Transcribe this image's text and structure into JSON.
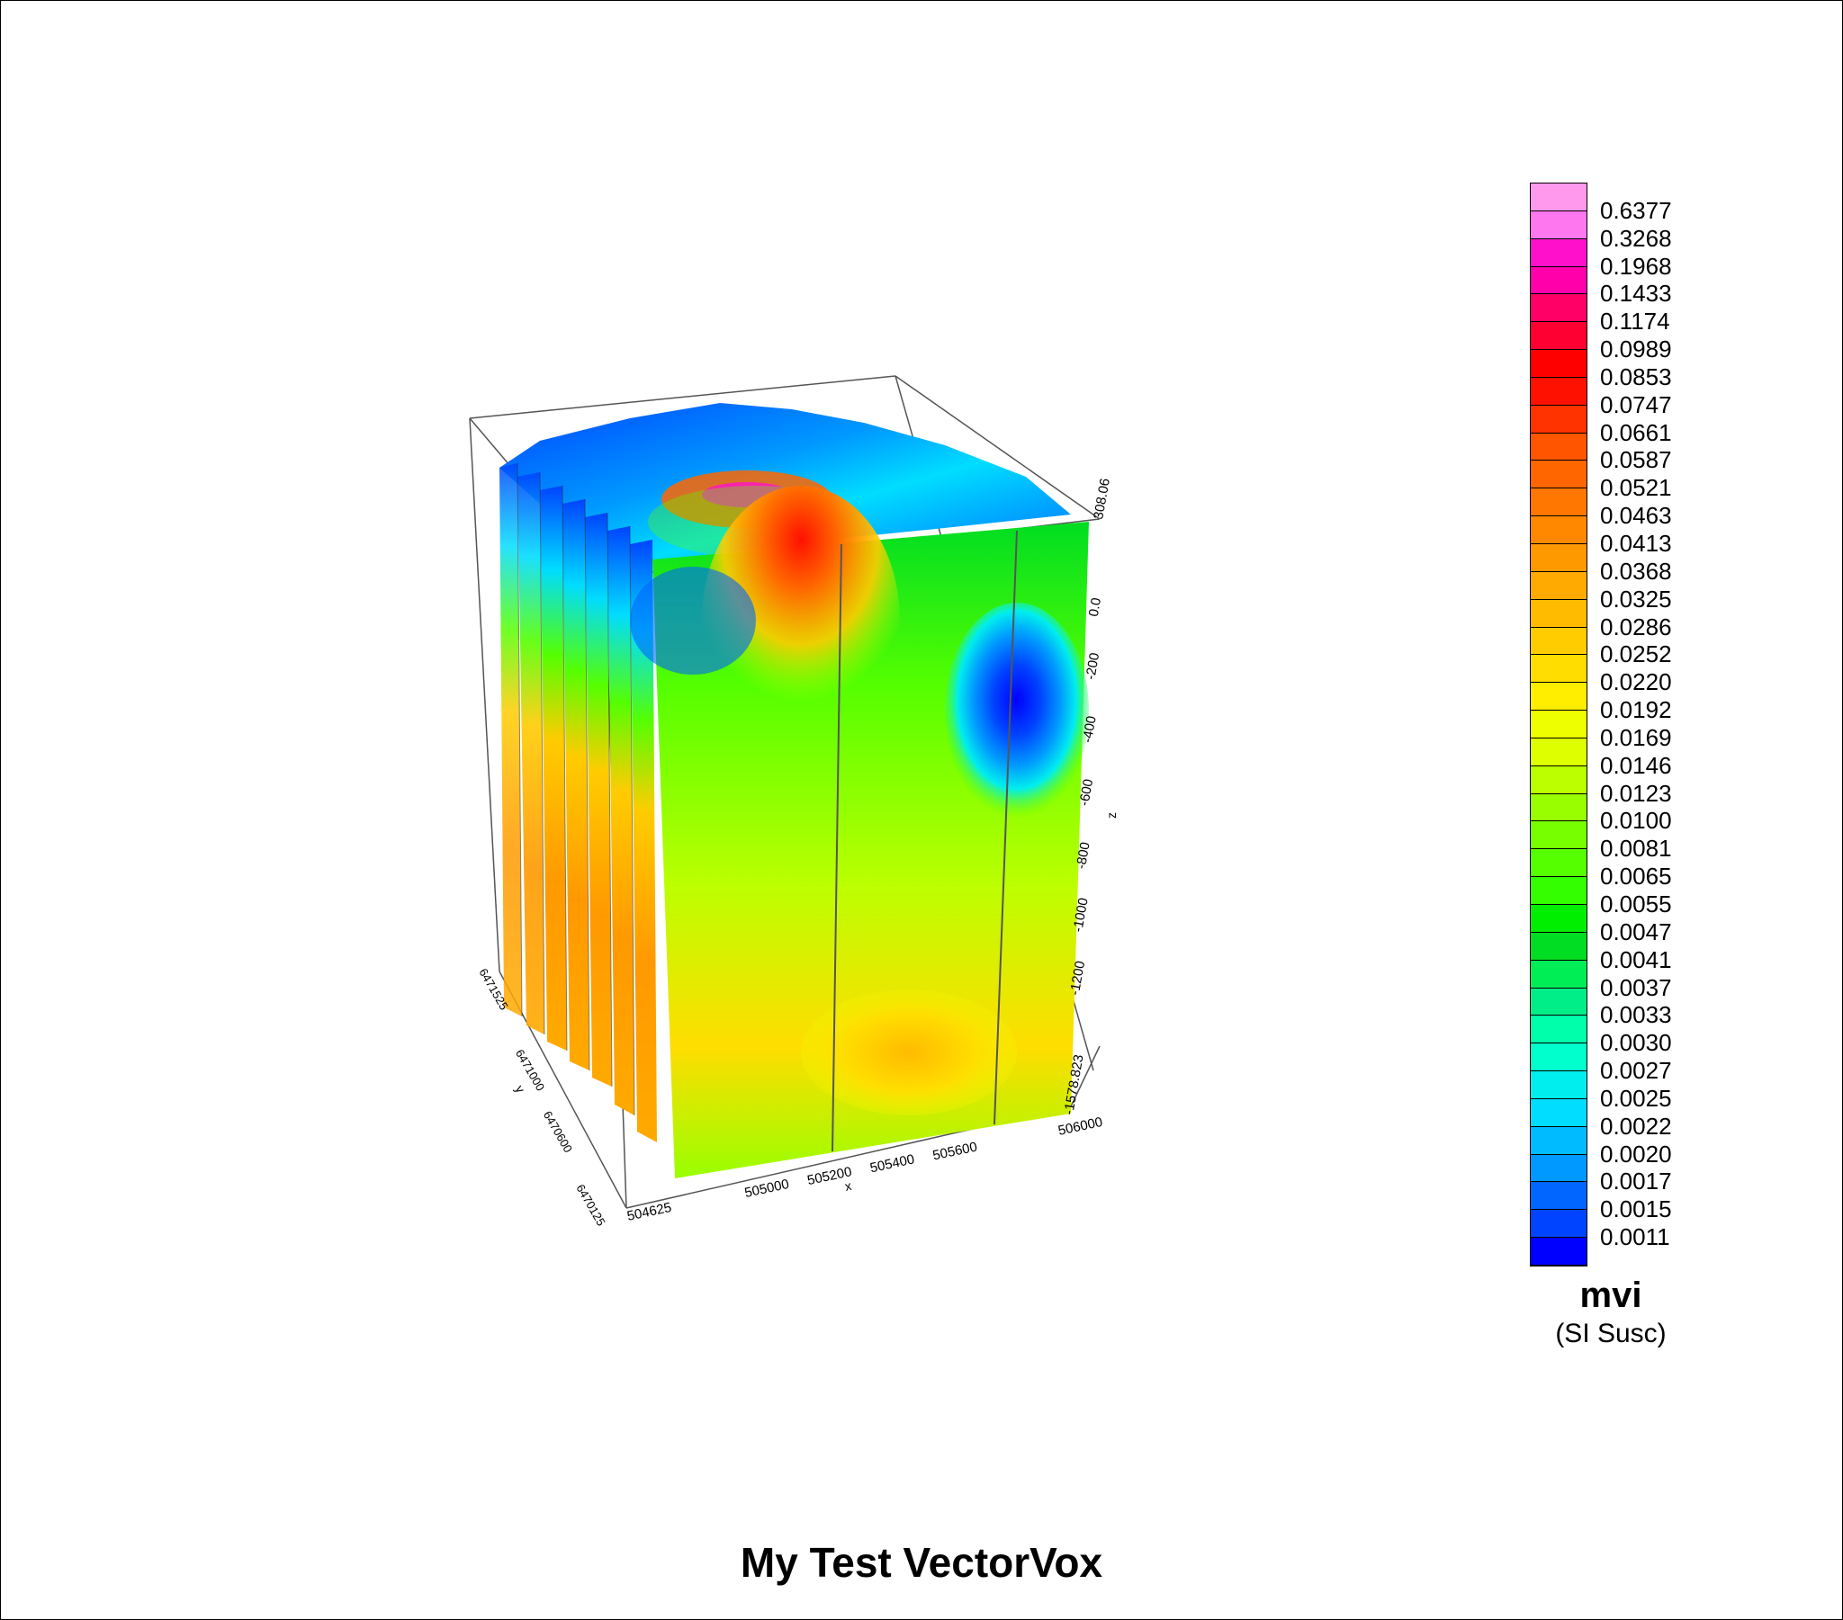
{
  "chart_data": {
    "type": "heatmap",
    "title": "My Test VectorVox",
    "variable": "mvi",
    "unit": "(SI Susc)",
    "axes": {
      "x": {
        "label": "x",
        "ticks": [
          "504625",
          "505000",
          "505200",
          "505400",
          "505600",
          "506000"
        ],
        "range": [
          504625,
          506000
        ]
      },
      "y": {
        "label": "y",
        "ticks": [
          "6471525",
          "6471000",
          "6470600",
          "6470125"
        ],
        "range": [
          6470125,
          6471525
        ]
      },
      "z": {
        "label": "z",
        "ticks": [
          "308.06",
          "0.0",
          "-200",
          "-400",
          "-600",
          "-800",
          "-1000",
          "-1200",
          "-1578.823"
        ],
        "range": [
          -1578.823,
          308.06
        ]
      }
    },
    "legend": {
      "placement": "right",
      "values": [
        "0.6377",
        "0.3268",
        "0.1968",
        "0.1433",
        "0.1174",
        "0.0989",
        "0.0853",
        "0.0747",
        "0.0661",
        "0.0587",
        "0.0521",
        "0.0463",
        "0.0413",
        "0.0368",
        "0.0325",
        "0.0286",
        "0.0252",
        "0.0220",
        "0.0192",
        "0.0169",
        "0.0146",
        "0.0123",
        "0.0100",
        "0.0081",
        "0.0065",
        "0.0055",
        "0.0047",
        "0.0041",
        "0.0037",
        "0.0033",
        "0.0030",
        "0.0027",
        "0.0025",
        "0.0022",
        "0.0020",
        "0.0017",
        "0.0015",
        "0.0011"
      ],
      "colors": [
        "#ff99ee",
        "#ff77ee",
        "#ff11cc",
        "#ff00aa",
        "#ff0066",
        "#ff0033",
        "#ff0000",
        "#ff1100",
        "#ff3300",
        "#ff5500",
        "#ff6600",
        "#ff7700",
        "#ff8800",
        "#ff9900",
        "#ffaa00",
        "#ffbb00",
        "#ffcc00",
        "#ffdd00",
        "#ffee00",
        "#eeff00",
        "#ddff00",
        "#bbff00",
        "#99ff00",
        "#77ff00",
        "#55ff00",
        "#33ff00",
        "#00ee00",
        "#00dd22",
        "#00ee55",
        "#00ee88",
        "#00ffaa",
        "#00ffcc",
        "#00eeee",
        "#00ddff",
        "#00bbff",
        "#0099ff",
        "#0066ff",
        "#0044ff",
        "#0000ff"
      ]
    }
  }
}
